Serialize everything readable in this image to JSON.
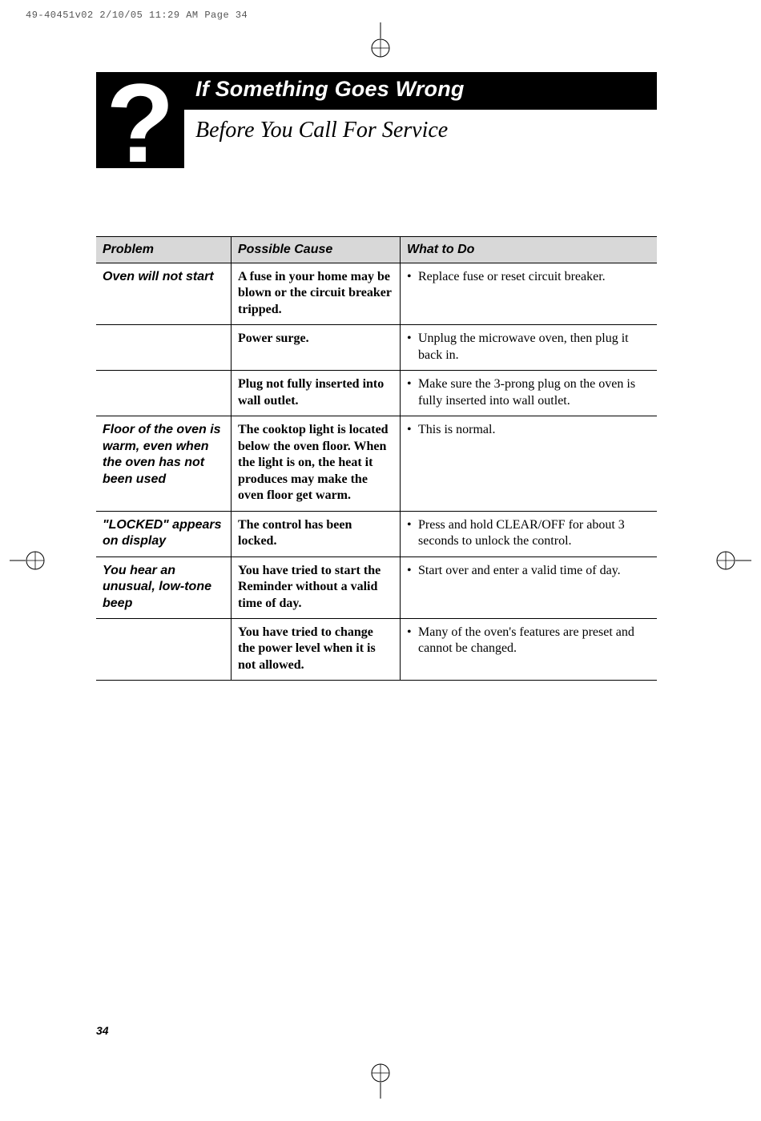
{
  "print_header": "49-40451v02  2/10/05  11:29 AM  Page 34",
  "title_bar": "If Something Goes Wrong",
  "subtitle": "Before You Call For Service",
  "qmark": "?",
  "headers": {
    "problem": "Problem",
    "cause": "Possible Cause",
    "what": "What to Do"
  },
  "groups": [
    {
      "problem": "Oven will not start",
      "rows": [
        {
          "cause": "A fuse in your home may be blown or the circuit breaker tripped.",
          "what": "Replace fuse or reset circuit breaker."
        },
        {
          "cause": "Power surge.",
          "what": "Unplug the microwave oven, then plug it back in."
        },
        {
          "cause": "Plug not fully inserted into wall outlet.",
          "what": "Make sure the 3-prong plug on the oven is fully inserted into wall outlet."
        }
      ]
    },
    {
      "problem": "Floor of the oven is warm, even when the oven has not been used",
      "rows": [
        {
          "cause": "The cooktop light is located below the oven floor. When the light is on, the heat it produces may make the oven floor get warm.",
          "what": "This is normal."
        }
      ]
    },
    {
      "problem": "\"LOCKED\" appears on display",
      "rows": [
        {
          "cause": "The control has been locked.",
          "what": "Press and hold CLEAR/OFF for about 3 seconds to unlock the control."
        }
      ]
    },
    {
      "problem": "You hear an unusual, low-tone beep",
      "rows": [
        {
          "cause": "You have tried to start the Reminder without a valid time of day.",
          "what": "Start over and enter a valid time of day."
        },
        {
          "cause": "You have tried to change the power level when it is not allowed.",
          "what": "Many of the oven's features are preset and cannot be changed."
        }
      ]
    }
  ],
  "page_number": "34"
}
